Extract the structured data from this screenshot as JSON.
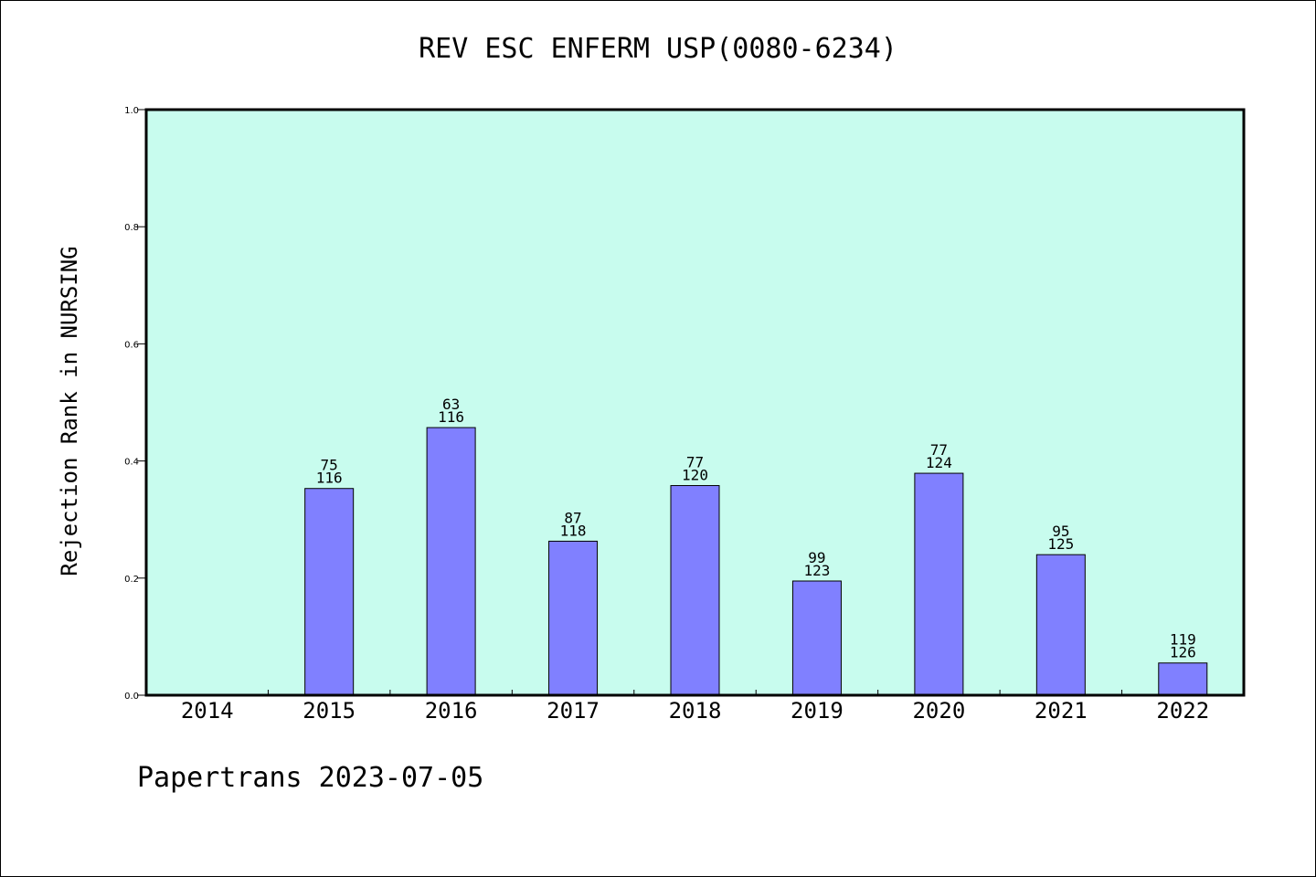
{
  "chart_data": {
    "type": "bar",
    "title": "REV ESC ENFERM USP(0080-6234)",
    "xlabel": "",
    "ylabel": "Rejection Rank in NURSING",
    "ylim": [
      0,
      1.0
    ],
    "yticks": [
      "0.0",
      "0.2",
      "0.4",
      "0.6",
      "0.8",
      "1.0"
    ],
    "categories": [
      "2014",
      "2015",
      "2016",
      "2017",
      "2018",
      "2019",
      "2020",
      "2021",
      "2022"
    ],
    "values": [
      null,
      0.353,
      0.457,
      0.263,
      0.358,
      0.195,
      0.379,
      0.24,
      0.055
    ],
    "rank": [
      null,
      "75",
      "63",
      "87",
      "77",
      "99",
      "77",
      "95",
      "119"
    ],
    "total": [
      null,
      "116",
      "116",
      "118",
      "120",
      "123",
      "124",
      "125",
      "126"
    ],
    "grid": false,
    "colors": {
      "plot_bg": "#c8fcee",
      "bar": "#8080ff"
    }
  },
  "footer": "Papertrans 2023-07-05"
}
